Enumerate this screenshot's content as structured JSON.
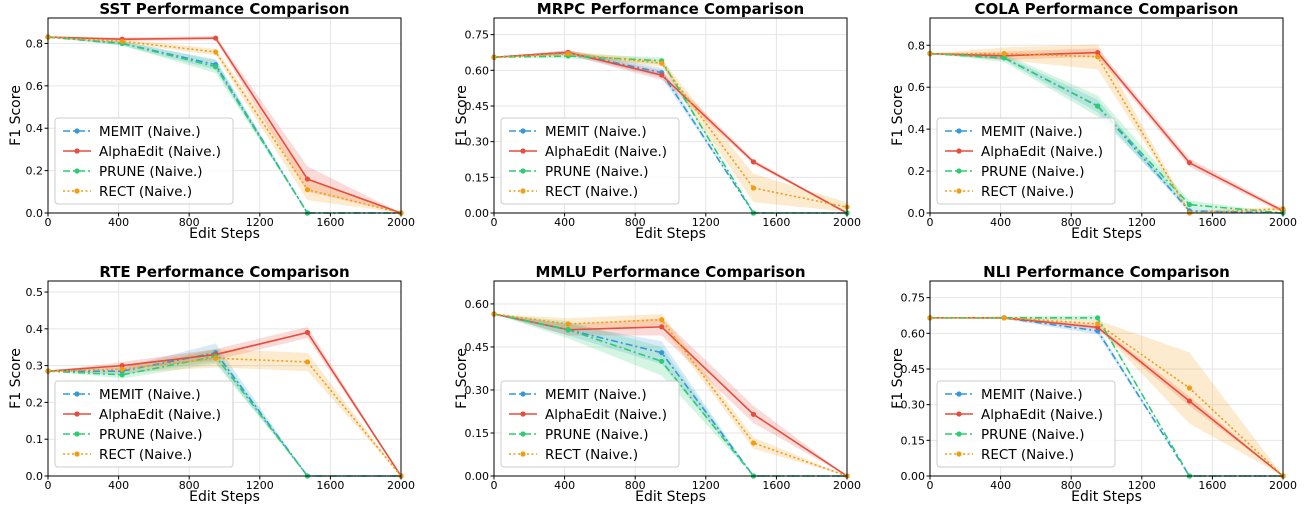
{
  "colors": {
    "MEMIT": "#3498db",
    "AlphaEdit": "#e74c3c",
    "PRUNE": "#2ecc71",
    "RECT": "#f39c12"
  },
  "chart_data": [
    {
      "type": "line",
      "title": "SST Performance Comparison",
      "xlabel": "Edit Steps",
      "ylabel": "F1 Score",
      "xlim": [
        0,
        2000
      ],
      "ylim": [
        0,
        0.92
      ],
      "xticks": [
        0,
        400,
        800,
        1200,
        1600,
        2000
      ],
      "yticks": [
        0.0,
        0.2,
        0.4,
        0.6,
        0.8
      ],
      "ytick_labels": [
        "0.0",
        "0.2",
        "0.4",
        "0.6",
        "0.8"
      ],
      "grid": true,
      "legend_position": "lower-left",
      "x": [
        0,
        420,
        950,
        1470,
        2000
      ],
      "series": [
        {
          "name": "MEMIT (Naive.)",
          "key": "MEMIT",
          "style": "dashdot",
          "values": [
            0.83,
            0.8,
            0.7,
            0.0,
            0.0
          ],
          "band": [
            0,
            0.01,
            0.025,
            0,
            0
          ]
        },
        {
          "name": "AlphaEdit (Naive.)",
          "key": "AlphaEdit",
          "style": "solid",
          "values": [
            0.83,
            0.82,
            0.825,
            0.16,
            0.0
          ],
          "band": [
            0,
            0.008,
            0.01,
            0.06,
            0
          ]
        },
        {
          "name": "PRUNE (Naive.)",
          "key": "PRUNE",
          "style": "dashdot",
          "values": [
            0.83,
            0.8,
            0.69,
            0.0,
            0.0
          ],
          "band": [
            0,
            0.01,
            0.03,
            0,
            0
          ]
        },
        {
          "name": "RECT (Naive.)",
          "key": "RECT",
          "style": "dotted",
          "values": [
            0.83,
            0.81,
            0.76,
            0.11,
            0.0
          ],
          "band": [
            0,
            0.01,
            0.015,
            0.05,
            0
          ]
        }
      ]
    },
    {
      "type": "line",
      "title": "MRPC Performance Comparison",
      "xlabel": "Edit Steps",
      "ylabel": "F1 Score",
      "xlim": [
        0,
        2000
      ],
      "ylim": [
        0,
        0.82
      ],
      "xticks": [
        0,
        400,
        800,
        1200,
        1600,
        2000
      ],
      "yticks": [
        0.0,
        0.15,
        0.3,
        0.45,
        0.6,
        0.75
      ],
      "ytick_labels": [
        "0.00",
        "0.15",
        "0.30",
        "0.45",
        "0.60",
        "0.75"
      ],
      "grid": true,
      "legend_position": "lower-left",
      "x": [
        0,
        420,
        950,
        1470,
        2000
      ],
      "series": [
        {
          "name": "MEMIT (Naive.)",
          "key": "MEMIT",
          "style": "dashdot",
          "values": [
            0.655,
            0.675,
            0.59,
            0.0,
            0.0
          ],
          "band": [
            0,
            0.01,
            0.02,
            0,
            0
          ]
        },
        {
          "name": "AlphaEdit (Naive.)",
          "key": "AlphaEdit",
          "style": "solid",
          "values": [
            0.655,
            0.675,
            0.58,
            0.215,
            0.0
          ],
          "band": [
            0,
            0.01,
            0.02,
            0.01,
            0
          ]
        },
        {
          "name": "PRUNE (Naive.)",
          "key": "PRUNE",
          "style": "dashdot",
          "values": [
            0.655,
            0.66,
            0.64,
            0.0,
            0.0
          ],
          "band": [
            0,
            0.01,
            0.015,
            0,
            0
          ]
        },
        {
          "name": "RECT (Naive.)",
          "key": "RECT",
          "style": "dotted",
          "values": [
            0.655,
            0.67,
            0.63,
            0.105,
            0.025
          ],
          "band": [
            0,
            0.01,
            0.015,
            0.06,
            0.02
          ]
        }
      ]
    },
    {
      "type": "line",
      "title": "COLA Performance Comparison",
      "xlabel": "Edit Steps",
      "ylabel": "F1 Score",
      "xlim": [
        0,
        2000
      ],
      "ylim": [
        0,
        0.93
      ],
      "xticks": [
        0,
        400,
        800,
        1200,
        1600,
        2000
      ],
      "yticks": [
        0.0,
        0.2,
        0.4,
        0.6,
        0.8
      ],
      "ytick_labels": [
        "0.0",
        "0.2",
        "0.4",
        "0.6",
        "0.8"
      ],
      "grid": true,
      "legend_position": "lower-left",
      "x": [
        0,
        420,
        950,
        1470,
        2000
      ],
      "series": [
        {
          "name": "MEMIT (Naive.)",
          "key": "MEMIT",
          "style": "dashdot",
          "values": [
            0.76,
            0.74,
            0.51,
            0.01,
            0.0
          ],
          "band": [
            0,
            0.01,
            0.03,
            0.01,
            0
          ]
        },
        {
          "name": "AlphaEdit (Naive.)",
          "key": "AlphaEdit",
          "style": "solid",
          "values": [
            0.76,
            0.75,
            0.765,
            0.24,
            0.01
          ],
          "band": [
            0,
            0.02,
            0.02,
            0.02,
            0.01
          ]
        },
        {
          "name": "PRUNE (Naive.)",
          "key": "PRUNE",
          "style": "dashdot",
          "values": [
            0.76,
            0.74,
            0.51,
            0.04,
            0.0
          ],
          "band": [
            0,
            0.02,
            0.05,
            0.02,
            0
          ]
        },
        {
          "name": "RECT (Naive.)",
          "key": "RECT",
          "style": "dotted",
          "values": [
            0.76,
            0.76,
            0.745,
            0.0,
            0.02
          ],
          "band": [
            0,
            0.03,
            0.06,
            0.01,
            0.01
          ]
        }
      ]
    },
    {
      "type": "line",
      "title": "RTE Performance Comparison",
      "xlabel": "Edit Steps",
      "ylabel": "F1 Score",
      "xlim": [
        0,
        2000
      ],
      "ylim": [
        0,
        0.53
      ],
      "xticks": [
        0,
        400,
        800,
        1200,
        1600,
        2000
      ],
      "yticks": [
        0.0,
        0.1,
        0.2,
        0.3,
        0.4,
        0.5
      ],
      "ytick_labels": [
        "0.0",
        "0.1",
        "0.2",
        "0.3",
        "0.4",
        "0.5"
      ],
      "grid": true,
      "legend_position": "lower-left",
      "x": [
        0,
        420,
        950,
        1470,
        2000
      ],
      "series": [
        {
          "name": "MEMIT (Naive.)",
          "key": "MEMIT",
          "style": "dashdot",
          "values": [
            0.285,
            0.285,
            0.335,
            0.0,
            0.0
          ],
          "band": [
            0,
            0.01,
            0.025,
            0,
            0
          ]
        },
        {
          "name": "AlphaEdit (Naive.)",
          "key": "AlphaEdit",
          "style": "solid",
          "values": [
            0.285,
            0.3,
            0.33,
            0.39,
            0.0
          ],
          "band": [
            0,
            0.01,
            0.015,
            0.015,
            0
          ]
        },
        {
          "name": "PRUNE (Naive.)",
          "key": "PRUNE",
          "style": "dashdot",
          "values": [
            0.285,
            0.275,
            0.325,
            0.0,
            0.0
          ],
          "band": [
            0,
            0.01,
            0.02,
            0,
            0
          ]
        },
        {
          "name": "RECT (Naive.)",
          "key": "RECT",
          "style": "dotted",
          "values": [
            0.285,
            0.29,
            0.32,
            0.31,
            0.0
          ],
          "band": [
            0,
            0.01,
            0.025,
            0.025,
            0
          ]
        }
      ]
    },
    {
      "type": "line",
      "title": "MMLU Performance Comparison",
      "xlabel": "Edit Steps",
      "ylabel": "F1 Score",
      "xlim": [
        0,
        2000
      ],
      "ylim": [
        0,
        0.68
      ],
      "xticks": [
        0,
        400,
        800,
        1200,
        1600,
        2000
      ],
      "yticks": [
        0.0,
        0.15,
        0.3,
        0.45,
        0.6
      ],
      "ytick_labels": [
        "0.00",
        "0.15",
        "0.30",
        "0.45",
        "0.60"
      ],
      "grid": true,
      "legend_position": "lower-left",
      "x": [
        0,
        420,
        950,
        1470,
        2000
      ],
      "series": [
        {
          "name": "MEMIT (Naive.)",
          "key": "MEMIT",
          "style": "dashdot",
          "values": [
            0.565,
            0.51,
            0.43,
            0.0,
            0.0
          ],
          "band": [
            0,
            0.02,
            0.04,
            0,
            0
          ]
        },
        {
          "name": "AlphaEdit (Naive.)",
          "key": "AlphaEdit",
          "style": "solid",
          "values": [
            0.565,
            0.51,
            0.52,
            0.215,
            0.0
          ],
          "band": [
            0,
            0.02,
            0.03,
            0.03,
            0
          ]
        },
        {
          "name": "PRUNE (Naive.)",
          "key": "PRUNE",
          "style": "dashdot",
          "values": [
            0.565,
            0.51,
            0.4,
            0.0,
            0.0
          ],
          "band": [
            0,
            0.03,
            0.05,
            0,
            0
          ]
        },
        {
          "name": "RECT (Naive.)",
          "key": "RECT",
          "style": "dotted",
          "values": [
            0.565,
            0.53,
            0.545,
            0.115,
            0.0
          ],
          "band": [
            0,
            0.02,
            0.02,
            0.02,
            0
          ]
        }
      ]
    },
    {
      "type": "line",
      "title": "NLI Performance Comparison",
      "xlabel": "Edit Steps",
      "ylabel": "F1 Score",
      "xlim": [
        0,
        2000
      ],
      "ylim": [
        0,
        0.82
      ],
      "xticks": [
        0,
        400,
        800,
        1200,
        1600,
        2000
      ],
      "yticks": [
        0.0,
        0.15,
        0.3,
        0.45,
        0.6,
        0.75
      ],
      "ytick_labels": [
        "0.00",
        "0.15",
        "0.30",
        "0.45",
        "0.60",
        "0.75"
      ],
      "grid": true,
      "legend_position": "lower-left",
      "x": [
        0,
        420,
        950,
        1470,
        2000
      ],
      "series": [
        {
          "name": "MEMIT (Naive.)",
          "key": "MEMIT",
          "style": "dashdot",
          "values": [
            0.665,
            0.665,
            0.61,
            0.0,
            0.0
          ],
          "band": [
            0,
            0.005,
            0.015,
            0,
            0
          ]
        },
        {
          "name": "AlphaEdit (Naive.)",
          "key": "AlphaEdit",
          "style": "solid",
          "values": [
            0.665,
            0.665,
            0.625,
            0.315,
            0.0
          ],
          "band": [
            0,
            0.005,
            0.01,
            0.02,
            0
          ]
        },
        {
          "name": "PRUNE (Naive.)",
          "key": "PRUNE",
          "style": "dashdot",
          "values": [
            0.665,
            0.665,
            0.665,
            0.0,
            0.0
          ],
          "band": [
            0,
            0.005,
            0.01,
            0,
            0
          ]
        },
        {
          "name": "RECT (Naive.)",
          "key": "RECT",
          "style": "dotted",
          "values": [
            0.665,
            0.665,
            0.64,
            0.37,
            0.0
          ],
          "band": [
            0,
            0.005,
            0.015,
            0.15,
            0
          ]
        }
      ]
    }
  ]
}
